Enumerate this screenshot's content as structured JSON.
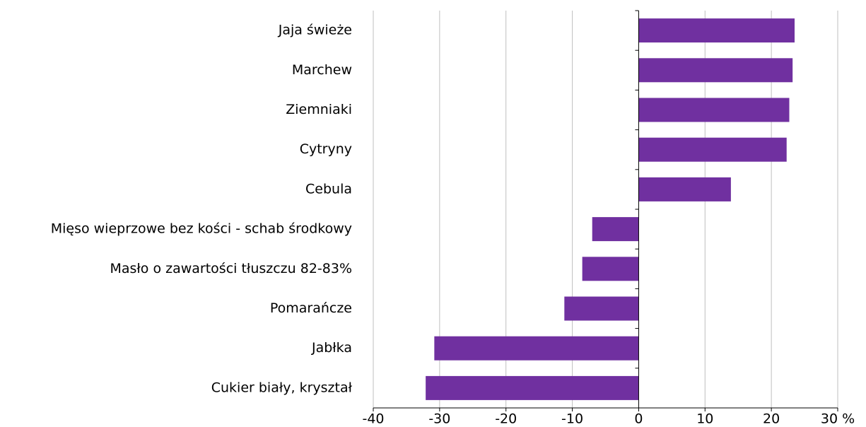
{
  "chart_data": {
    "type": "bar",
    "orientation": "horizontal",
    "categories": [
      "Jaja świeże",
      "Marchew",
      "Ziemniaki",
      "Cytryny",
      "Cebula",
      "Mięso wieprzowe bez kości - schab środkowy",
      "Masło o zawartości tłuszczu 82-83%",
      "Pomarańcze",
      "Jabłka",
      "Cukier biały, kryształ"
    ],
    "values": [
      23.5,
      23.2,
      22.7,
      22.3,
      13.9,
      -7.0,
      -8.5,
      -11.2,
      -30.8,
      -32.1
    ],
    "color": "#7030a0",
    "xlim": [
      -40,
      30
    ],
    "xticks": [
      -40,
      -30,
      -20,
      -10,
      0,
      10,
      20,
      {
        "value": 30,
        "label": "30 %"
      }
    ],
    "grid": true
  }
}
